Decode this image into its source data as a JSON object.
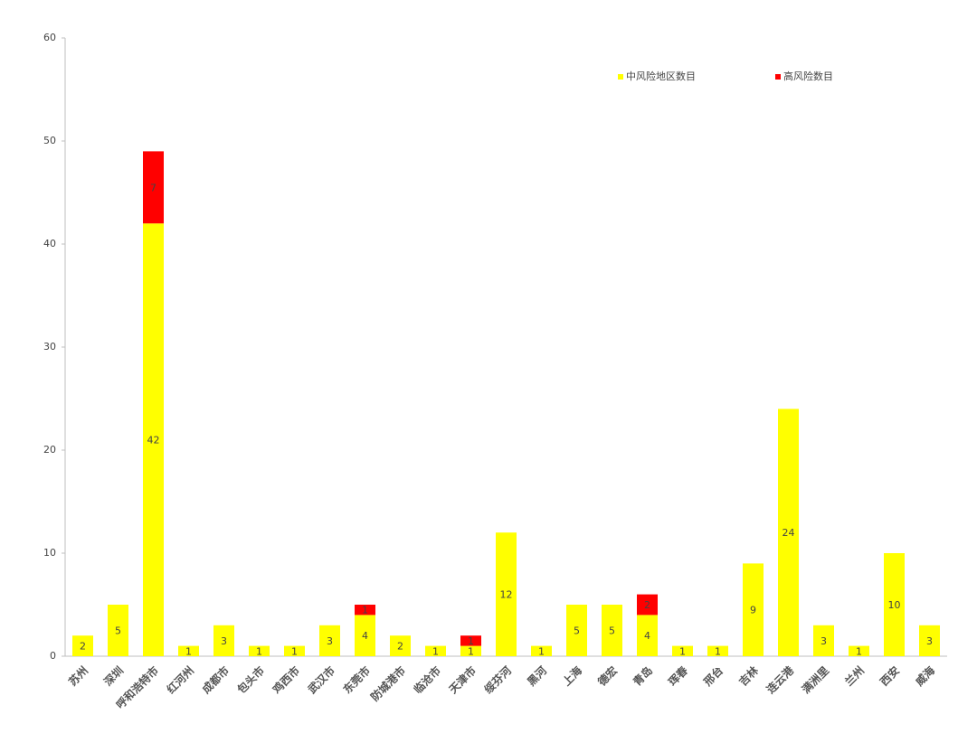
{
  "chart_data": {
    "type": "stacked_bar",
    "categories": [
      "苏州",
      "深圳",
      "呼和浩特市",
      "红河州",
      "成都市",
      "包头市",
      "鸡西市",
      "武汉市",
      "东莞市",
      "防城港市",
      "临沧市",
      "天津市",
      "绥芬河",
      "黑河",
      "上海",
      "德宏",
      "青岛",
      "珲春",
      "邢台",
      "吉林",
      "连云港",
      "满洲里",
      "兰州",
      "西安",
      "威海"
    ],
    "series": [
      {
        "name": "中风险地区数目",
        "color": "#ffff00",
        "values": [
          2,
          5,
          42,
          1,
          3,
          1,
          1,
          3,
          4,
          2,
          1,
          1,
          12,
          1,
          5,
          5,
          4,
          1,
          1,
          9,
          24,
          3,
          1,
          10,
          3
        ]
      },
      {
        "name": "高风险数目",
        "color": "#ff0000",
        "values": [
          null,
          null,
          7,
          null,
          null,
          null,
          null,
          null,
          1,
          null,
          null,
          1,
          null,
          null,
          null,
          null,
          2,
          null,
          null,
          null,
          null,
          null,
          null,
          null,
          null
        ]
      }
    ],
    "ylim": [
      0,
      60
    ],
    "yticks": [
      0,
      10,
      20,
      30,
      40,
      50,
      60
    ],
    "grid": false,
    "legend": "top-right"
  }
}
